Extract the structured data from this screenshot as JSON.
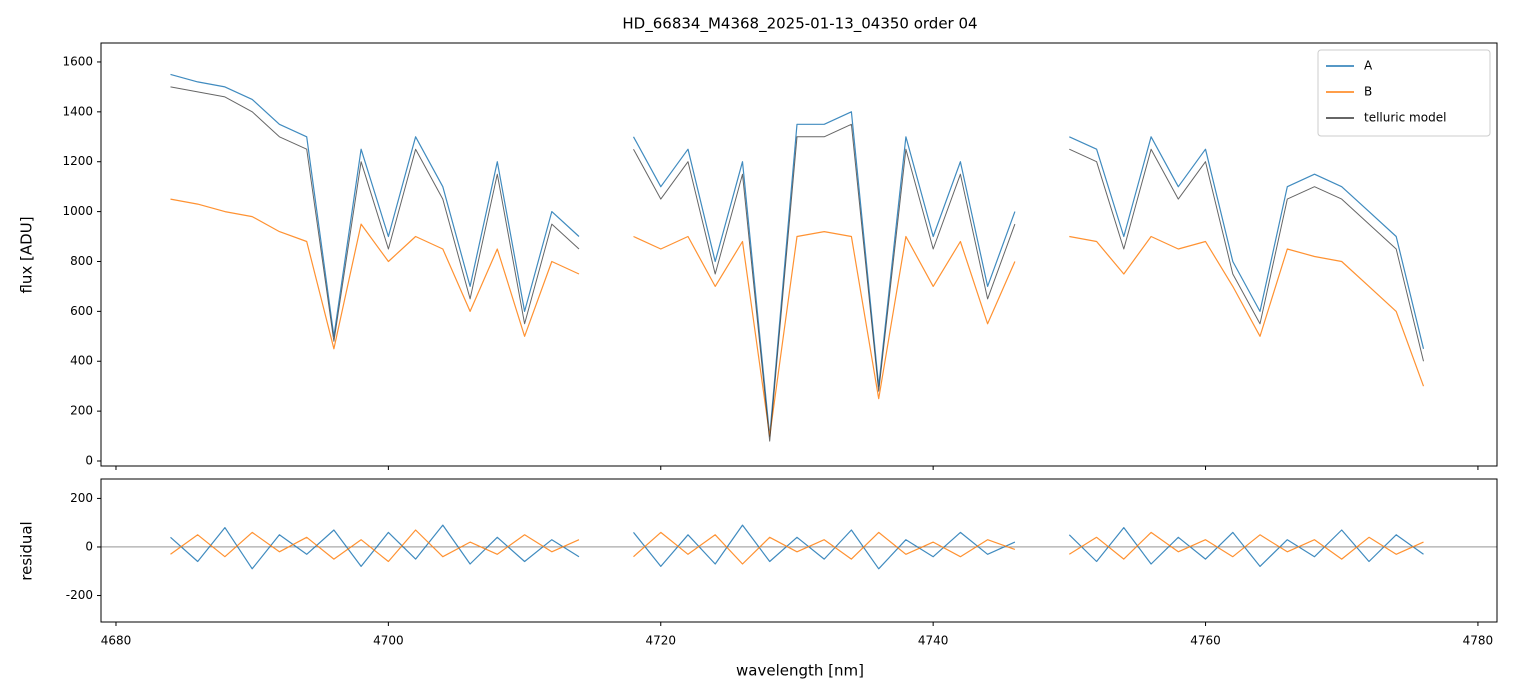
{
  "chart_data": [
    {
      "type": "line",
      "title": "HD_66834_M4368_2025-01-13_04350  order 04",
      "y_label": "flux [ADU]",
      "x": [
        4684,
        4686,
        4688,
        4690,
        4692,
        4694,
        4696,
        4698,
        4700,
        4702,
        4704,
        4706,
        4708,
        4710,
        4712,
        4714,
        4716,
        4718,
        4720,
        4722,
        4724,
        4726,
        4728,
        4730,
        4732,
        4734,
        4736,
        4738,
        4740,
        4742,
        4744,
        4746,
        4748,
        4750,
        4752,
        4754,
        4756,
        4758,
        4760,
        4762,
        4764,
        4766,
        4768,
        4770,
        4772,
        4774,
        4776
      ],
      "series": [
        {
          "name": "A",
          "color": "#1f77b4",
          "values": [
            1550,
            1520,
            1500,
            1450,
            1350,
            1300,
            500,
            1250,
            900,
            1300,
            1100,
            700,
            1200,
            600,
            1000,
            900,
            null,
            1300,
            1100,
            1250,
            800,
            1200,
            100,
            1350,
            1350,
            1400,
            300,
            1300,
            900,
            1200,
            700,
            1000,
            null,
            1300,
            1250,
            900,
            1300,
            1100,
            1250,
            800,
            600,
            1100,
            1150,
            1100,
            1000,
            900,
            450
          ]
        },
        {
          "name": "B",
          "color": "#ff7f0e",
          "values": [
            1050,
            1030,
            1000,
            980,
            920,
            880,
            450,
            950,
            800,
            900,
            850,
            600,
            850,
            500,
            800,
            750,
            null,
            900,
            850,
            900,
            700,
            880,
            100,
            900,
            920,
            900,
            250,
            900,
            700,
            880,
            550,
            800,
            null,
            900,
            880,
            750,
            900,
            850,
            880,
            700,
            500,
            850,
            820,
            800,
            700,
            600,
            300
          ]
        },
        {
          "name": "telluric model",
          "color": "#333333",
          "values": [
            1500,
            1480,
            1460,
            1400,
            1300,
            1250,
            480,
            1200,
            850,
            1250,
            1050,
            650,
            1150,
            550,
            950,
            850,
            null,
            1250,
            1050,
            1200,
            750,
            1150,
            80,
            1300,
            1300,
            1350,
            280,
            1250,
            850,
            1150,
            650,
            950,
            null,
            1250,
            1200,
            850,
            1250,
            1050,
            1200,
            750,
            550,
            1050,
            1100,
            1050,
            950,
            850,
            400
          ]
        }
      ],
      "xlim": [
        4678.9,
        4781.4
      ],
      "xticks": [
        4680,
        4700,
        4720,
        4740,
        4760,
        4780
      ],
      "ylim": [
        -20,
        1676
      ],
      "yticks": [
        0,
        200,
        400,
        600,
        800,
        1000,
        1200,
        1400,
        1600
      ],
      "legend": "upper right"
    },
    {
      "type": "line",
      "y_label": "residual",
      "x_label": "wavelength [nm]",
      "x": [
        4684,
        4686,
        4688,
        4690,
        4692,
        4694,
        4696,
        4698,
        4700,
        4702,
        4704,
        4706,
        4708,
        4710,
        4712,
        4714,
        4716,
        4718,
        4720,
        4722,
        4724,
        4726,
        4728,
        4730,
        4732,
        4734,
        4736,
        4738,
        4740,
        4742,
        4744,
        4746,
        4748,
        4750,
        4752,
        4754,
        4756,
        4758,
        4760,
        4762,
        4764,
        4766,
        4768,
        4770,
        4772,
        4774,
        4776
      ],
      "series": [
        {
          "name": "A",
          "color": "#1f77b4",
          "values": [
            40,
            -60,
            80,
            -90,
            50,
            -30,
            70,
            -80,
            60,
            -50,
            90,
            -70,
            40,
            -60,
            30,
            -40,
            null,
            60,
            -80,
            50,
            -70,
            90,
            -60,
            40,
            -50,
            70,
            -90,
            30,
            -40,
            60,
            -30,
            20,
            null,
            50,
            -60,
            80,
            -70,
            40,
            -50,
            60,
            -80,
            30,
            -40,
            70,
            -60,
            50,
            -30
          ]
        },
        {
          "name": "B",
          "color": "#ff7f0e",
          "values": [
            -30,
            50,
            -40,
            60,
            -20,
            40,
            -50,
            30,
            -60,
            70,
            -40,
            20,
            -30,
            50,
            -20,
            30,
            null,
            -40,
            60,
            -30,
            50,
            -70,
            40,
            -20,
            30,
            -50,
            60,
            -30,
            20,
            -40,
            30,
            -10,
            null,
            -30,
            40,
            -50,
            60,
            -20,
            30,
            -40,
            50,
            -20,
            30,
            -50,
            40,
            -30,
            20
          ]
        }
      ],
      "hline": 0,
      "xlim": [
        4678.9,
        4781.4
      ],
      "xticks": [
        4680,
        4700,
        4720,
        4740,
        4760,
        4780
      ],
      "ylim": [
        -309,
        280
      ],
      "yticks": [
        -200,
        0,
        200
      ]
    }
  ]
}
